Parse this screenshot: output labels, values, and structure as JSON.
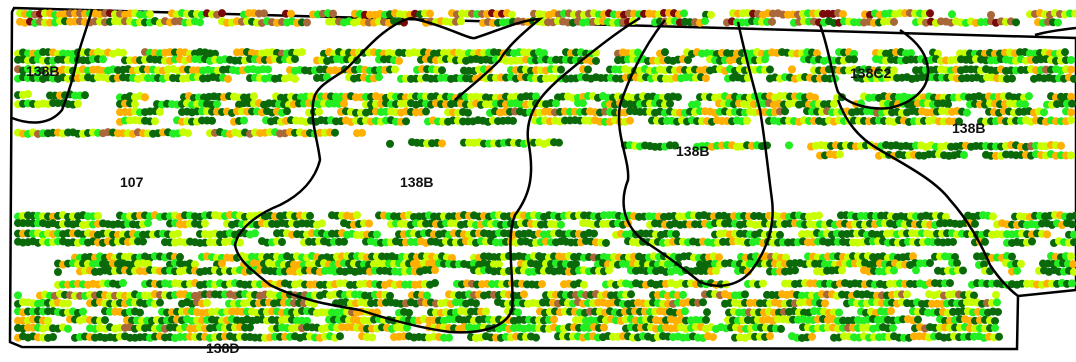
{
  "map": {
    "soil_labels": [
      {
        "id": "107a",
        "text": "138B"
      },
      {
        "id": "107b",
        "text": "107"
      },
      {
        "id": "138b-center",
        "text": "138B"
      },
      {
        "id": "138b-right",
        "text": "138B"
      },
      {
        "id": "138c2",
        "text": "138C2"
      },
      {
        "id": "138b-east",
        "text": "138B"
      },
      {
        "id": "138d",
        "text": "138D"
      }
    ],
    "yield_palette": {
      "very_low": "#7a0a0a",
      "low": "#a8683a",
      "medium": "#ffb000",
      "high": "#c8ff00",
      "very_high": "#22ee22",
      "top": "#0a6a0a"
    },
    "boundary_color": "#000000"
  }
}
